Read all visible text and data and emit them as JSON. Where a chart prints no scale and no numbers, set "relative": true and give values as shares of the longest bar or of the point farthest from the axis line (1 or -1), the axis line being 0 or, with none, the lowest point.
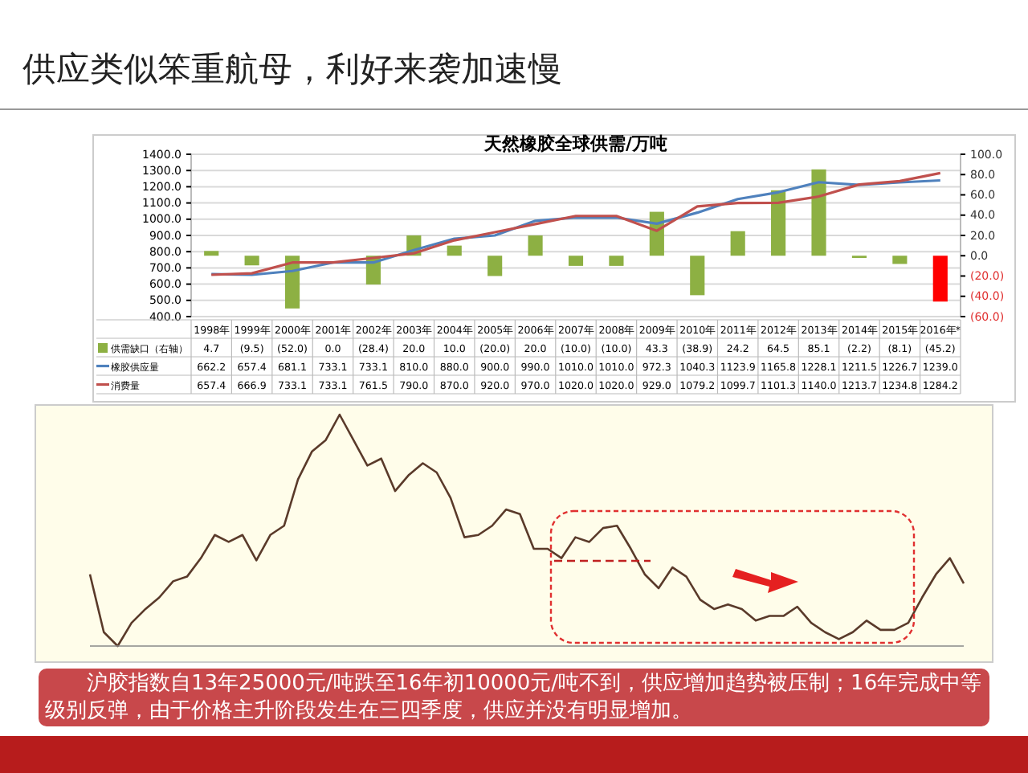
{
  "chart_data": [
    {
      "type": "bar",
      "title": "天然橡胶全球供需/万吨",
      "annotations": [
        "供应类似笨重航母，利好来袭加速慢"
      ],
      "categories": [
        "1998年",
        "1999年",
        "2000年",
        "2001年",
        "2002年",
        "2003年",
        "2004年",
        "2005年",
        "2006年",
        "2007年",
        "2008年",
        "2009年",
        "2010年",
        "2011年",
        "2012年",
        "2013年",
        "2014年",
        "2015年",
        "2016年*"
      ],
      "series": [
        {
          "name": "供需缺口（右轴）",
          "type": "bar",
          "axis": "y2",
          "color": "#8db043",
          "colors": [
            "#8db043",
            "#8db043",
            "#8db043",
            "#8db043",
            "#8db043",
            "#8db043",
            "#8db043",
            "#8db043",
            "#8db043",
            "#8db043",
            "#8db043",
            "#8db043",
            "#8db043",
            "#8db043",
            "#8db043",
            "#8db043",
            "#8db043",
            "#8db043",
            "#ff0000"
          ],
          "values": [
            4.7,
            -9.5,
            -52.0,
            0.0,
            -28.4,
            20.0,
            10.0,
            -20.0,
            20.0,
            -10.0,
            -10.0,
            43.3,
            -38.9,
            24.2,
            64.5,
            85.1,
            -2.2,
            -8.1,
            -45.2
          ],
          "value_labels": [
            "4.7",
            "(9.5)",
            "(52.0)",
            "0.0",
            "(28.4)",
            "20.0",
            "10.0",
            "(20.0)",
            "20.0",
            "(10.0)",
            "(10.0)",
            "43.3",
            "(38.9)",
            "24.2",
            "64.5",
            "85.1",
            "(2.2)",
            "(8.1)",
            "(45.2)"
          ]
        },
        {
          "name": "橡胶供应量",
          "type": "line",
          "color": "#4f81bd",
          "values": [
            662.2,
            657.4,
            681.1,
            733.1,
            733.1,
            810.0,
            880.0,
            900.0,
            990.0,
            1010.0,
            1010.0,
            972.3,
            1040.3,
            1123.9,
            1165.8,
            1228.1,
            1211.5,
            1226.7,
            1239.0
          ],
          "value_labels": [
            "662.2",
            "657.4",
            "681.1",
            "733.1",
            "733.1",
            "810.0",
            "880.0",
            "900.0",
            "990.0",
            "1010.0",
            "1010.0",
            "972.3",
            "1040.3",
            "1123.9",
            "1165.8",
            "1228.1",
            "1211.5",
            "1226.7",
            "1239.0"
          ]
        },
        {
          "name": "消费量",
          "type": "line",
          "color": "#c0504d",
          "values": [
            657.4,
            666.9,
            733.1,
            733.1,
            761.5,
            790.0,
            870.0,
            920.0,
            970.0,
            1020.0,
            1020.0,
            929.0,
            1079.2,
            1099.7,
            1101.3,
            1140.0,
            1213.7,
            1234.8,
            1284.2
          ],
          "value_labels": [
            "657.4",
            "666.9",
            "733.1",
            "733.1",
            "761.5",
            "790.0",
            "870.0",
            "920.0",
            "970.0",
            "1020.0",
            "1020.0",
            "929.0",
            "1079.2",
            "1099.7",
            "1101.3",
            "1140.0",
            "1213.7",
            "1234.8",
            "1284.2"
          ]
        }
      ],
      "ylim": [
        400,
        1400
      ],
      "yticks": [
        {
          "value": 400,
          "label": "400.0"
        },
        {
          "value": 500,
          "label": "500.0"
        },
        {
          "value": 600,
          "label": "600.0"
        },
        {
          "value": 700,
          "label": "700.0"
        },
        {
          "value": 800,
          "label": "800.0"
        },
        {
          "value": 900,
          "label": "900.0"
        },
        {
          "value": 1000,
          "label": "1000.0"
        },
        {
          "value": 1100,
          "label": "1100.0"
        },
        {
          "value": 1200,
          "label": "1200.0"
        },
        {
          "value": 1300,
          "label": "1300.0"
        },
        {
          "value": 1400,
          "label": "1400.0"
        }
      ],
      "y2lim": [
        -60,
        100
      ],
      "y2ticks": [
        {
          "value": -60,
          "label": "(60.0)"
        },
        {
          "value": -40,
          "label": "(40.0)"
        },
        {
          "value": -20,
          "label": "(20.0)"
        },
        {
          "value": 0,
          "label": "0.0"
        },
        {
          "value": 20,
          "label": "20.0"
        },
        {
          "value": 40,
          "label": "40.0"
        },
        {
          "value": 60,
          "label": "60.0"
        },
        {
          "value": 80,
          "label": "80.0"
        },
        {
          "value": 100,
          "label": "100.0"
        }
      ],
      "grid": "y",
      "legend": "bottom"
    },
    {
      "type": "line",
      "relative": true,
      "color": "#5a3a2a",
      "annotations": [
        "沪胶指数自13年25000元/吨跌至16年初10000元/吨不到，供应增加趋势被压制；16年完成中等级别反弹，由于价格主升阶段发生在三四季度，供应并没有明显增加。"
      ],
      "categories": [
        null,
        null,
        null,
        null,
        null,
        null,
        null,
        null,
        null,
        null,
        null,
        null,
        null,
        null,
        null,
        null,
        null,
        null,
        null,
        null,
        null,
        null,
        null,
        null,
        null,
        null,
        null,
        null,
        null,
        null,
        null,
        null,
        null,
        null,
        null,
        null,
        null,
        null,
        null,
        null,
        null,
        null,
        null,
        null,
        null,
        null,
        null,
        null,
        null,
        null,
        null,
        null,
        null,
        null,
        null,
        null,
        null,
        null,
        null,
        null,
        null,
        null,
        null,
        null
      ],
      "values": [
        0.31,
        0.06,
        0,
        0.1,
        0.16,
        0.21,
        0.28,
        0.3,
        0.38,
        0.48,
        0.45,
        0.48,
        0.37,
        0.48,
        0.52,
        0.72,
        0.84,
        0.89,
        1,
        0.89,
        0.78,
        0.81,
        0.67,
        0.74,
        0.79,
        0.75,
        0.64,
        0.47,
        0.48,
        0.52,
        0.59,
        0.57,
        0.42,
        0.42,
        0.38,
        0.47,
        0.45,
        0.51,
        0.52,
        0.42,
        0.31,
        0.25,
        0.34,
        0.3,
        0.2,
        0.16,
        0.18,
        0.16,
        0.11,
        0.13,
        0.13,
        0.17,
        0.1,
        0.06,
        0.03,
        0.06,
        0.11,
        0.07,
        0.07,
        0.1,
        0.21,
        0.31,
        0.38,
        0.27
      ]
    }
  ]
}
